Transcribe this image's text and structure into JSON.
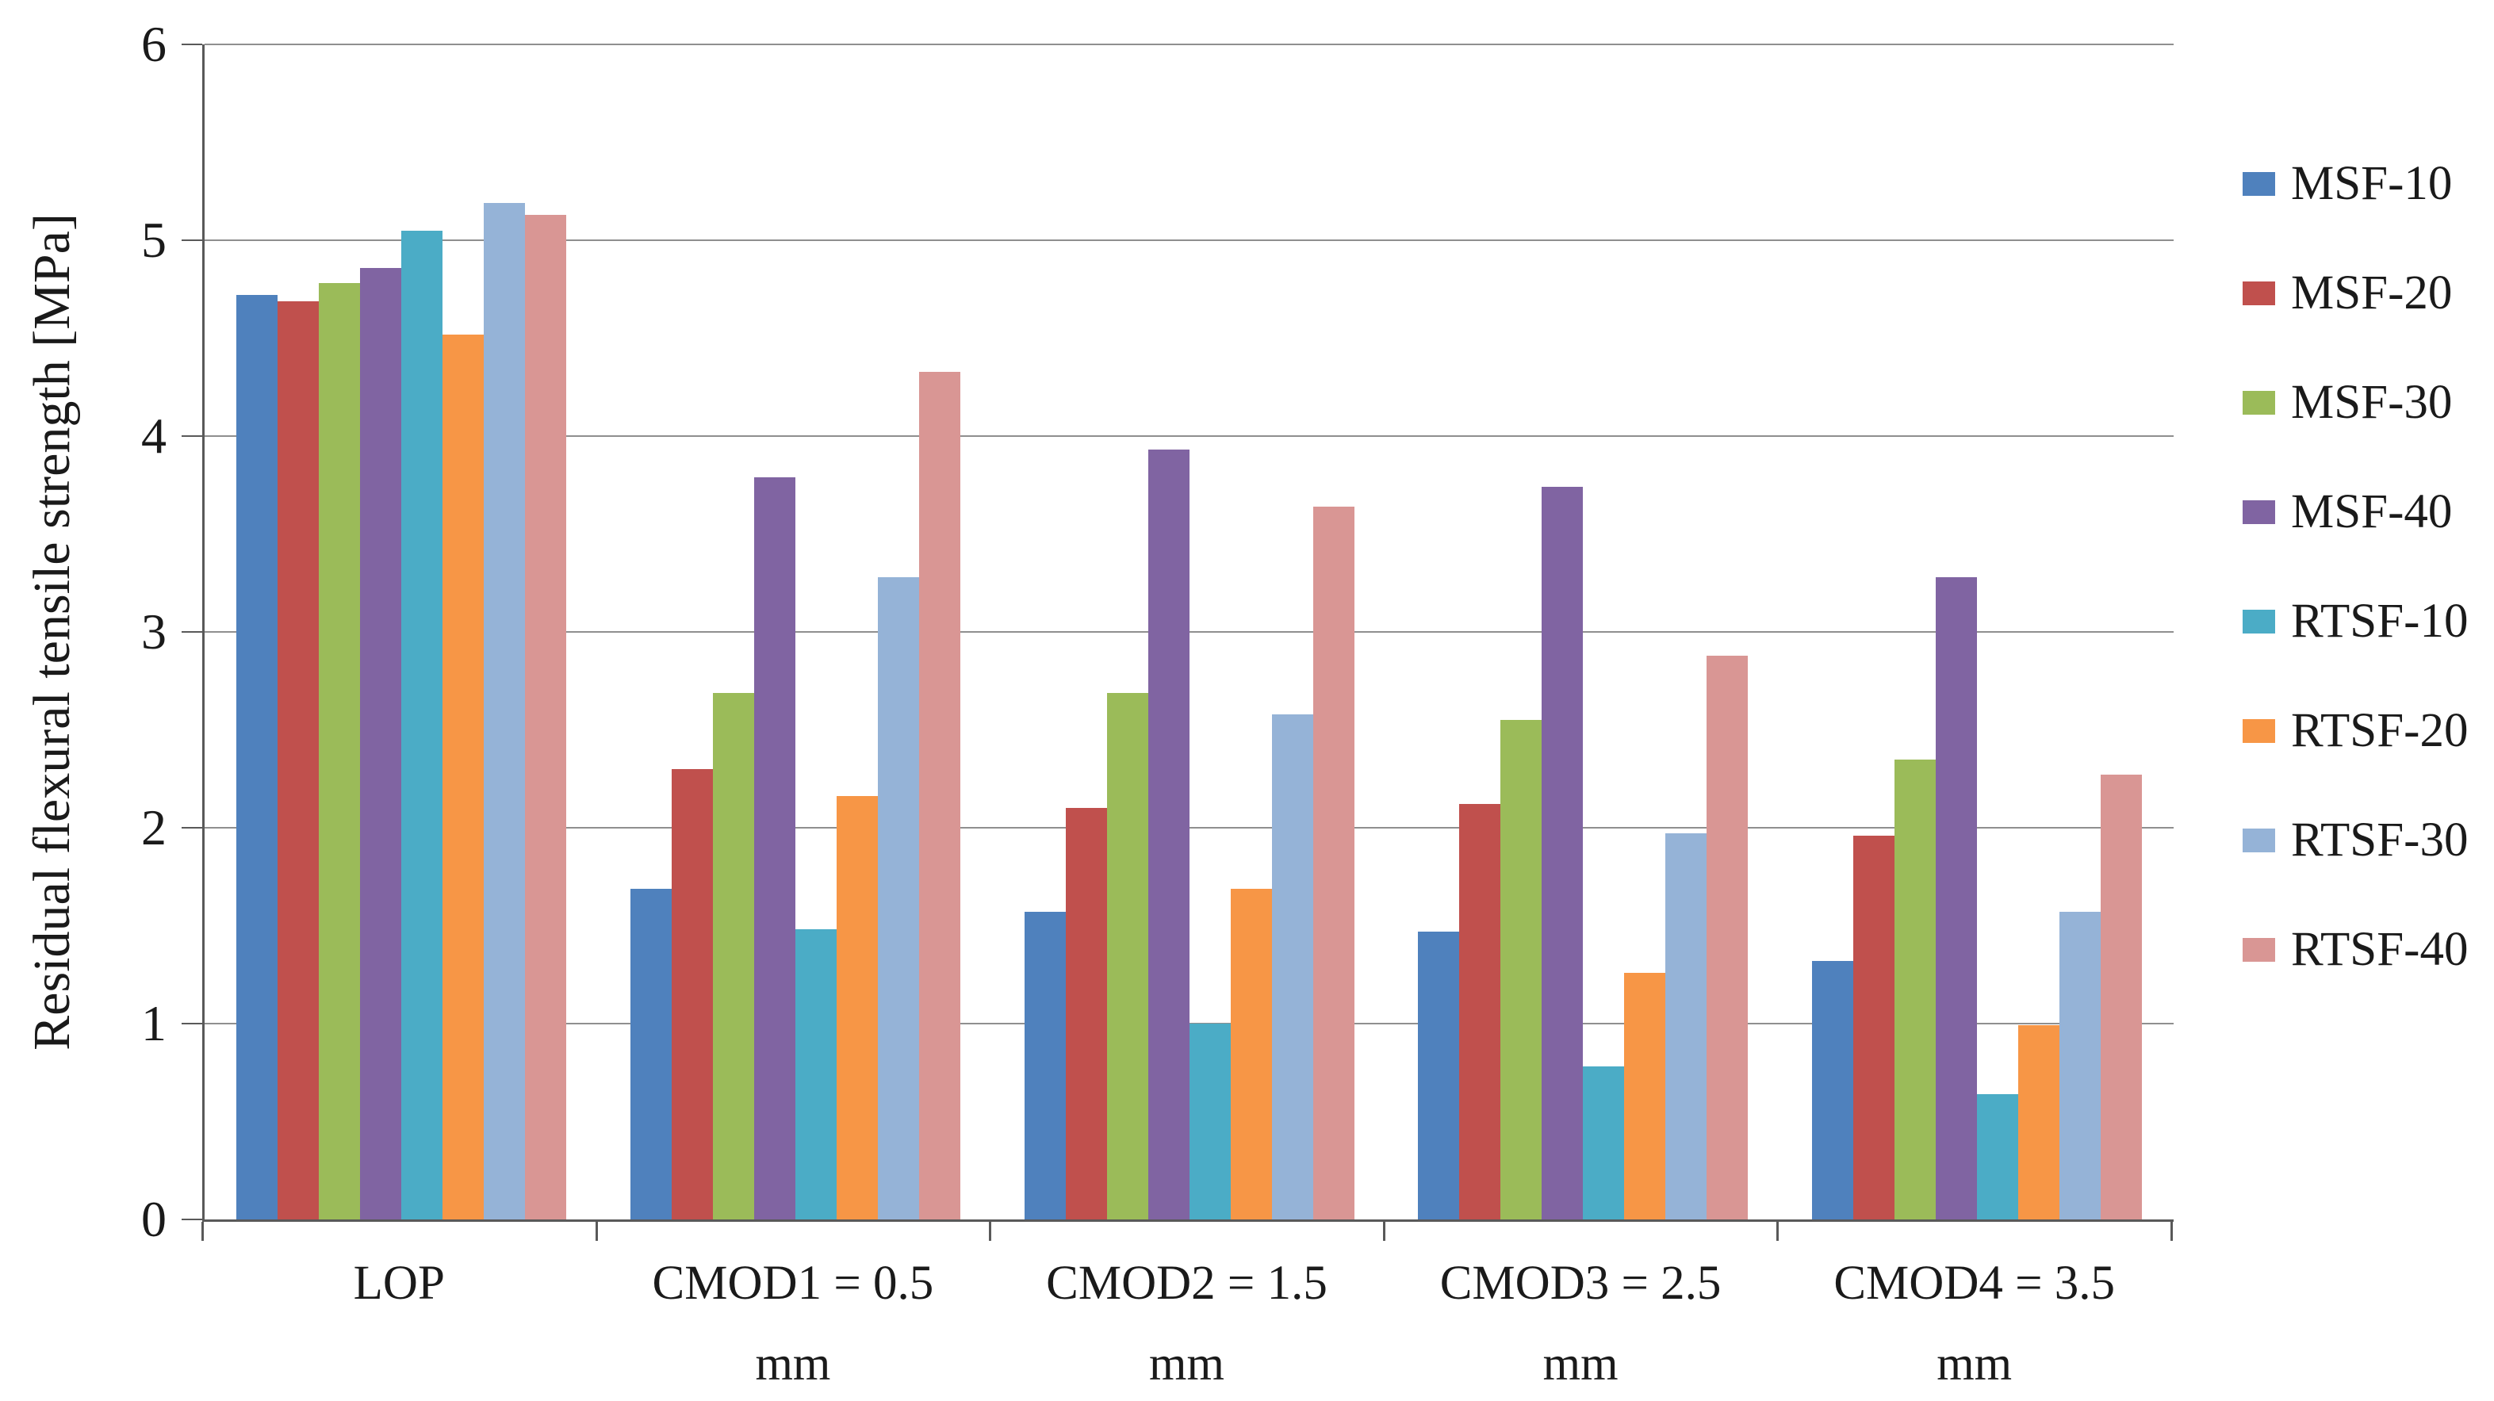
{
  "figure": {
    "background": "#FFFFFF"
  },
  "styles": {
    "grid_color": "#8F8F8F",
    "axis_color": "#595959",
    "text_color": "#1A1A1A"
  },
  "chart_data": {
    "type": "bar",
    "title": "",
    "xlabel": "",
    "ylabel": "Residual flexural tensile strength [MPa]",
    "ylim": [
      0,
      6
    ],
    "yticks": [
      0,
      1,
      2,
      3,
      4,
      5,
      6
    ],
    "grid": "horizontal",
    "legend_position": "right",
    "categories": [
      "LOP",
      "CMOD1 = 0.5 mm",
      "CMOD2 = 1.5 mm",
      "CMOD3 = 2.5 mm",
      "CMOD4 = 3.5 mm"
    ],
    "category_label_lines": [
      [
        "LOP"
      ],
      [
        "CMOD1 = 0.5",
        "mm"
      ],
      [
        "CMOD2 = 1.5",
        "mm"
      ],
      [
        "CMOD3 = 2.5",
        "mm"
      ],
      [
        "CMOD4 = 3.5",
        "mm"
      ]
    ],
    "series": [
      {
        "name": "MSF-10",
        "color": "#4F81BD",
        "values": [
          4.72,
          1.69,
          1.57,
          1.47,
          1.32
        ]
      },
      {
        "name": "MSF-20",
        "color": "#C0504D",
        "values": [
          4.69,
          2.3,
          2.1,
          2.12,
          1.96
        ]
      },
      {
        "name": "MSF-30",
        "color": "#9BBB59",
        "values": [
          4.78,
          2.69,
          2.69,
          2.55,
          2.35
        ]
      },
      {
        "name": "MSF-40",
        "color": "#8064A2",
        "values": [
          4.86,
          3.79,
          3.93,
          3.74,
          3.28
        ]
      },
      {
        "name": "RTSF-10",
        "color": "#4BACC6",
        "values": [
          5.05,
          1.48,
          1.0,
          0.78,
          0.64
        ]
      },
      {
        "name": "RTSF-20",
        "color": "#F79646",
        "values": [
          4.52,
          2.16,
          1.69,
          1.26,
          0.99
        ]
      },
      {
        "name": "RTSF-30",
        "color": "#95B3D7",
        "values": [
          5.19,
          3.28,
          2.58,
          1.97,
          1.57
        ]
      },
      {
        "name": "RTSF-40",
        "color": "#D99694",
        "values": [
          5.13,
          4.33,
          3.64,
          2.88,
          2.27
        ]
      }
    ]
  }
}
